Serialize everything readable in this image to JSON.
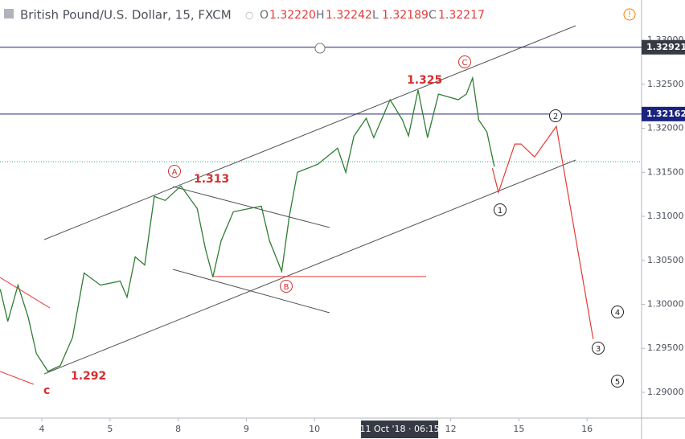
{
  "chart_data": {
    "type": "line",
    "title": "British Pound/U.S. Dollar, 15, FXCM",
    "ohlc": [
      {
        "key": "O",
        "value": "1.32220"
      },
      {
        "key": "H",
        "value": "1.32242"
      },
      {
        "key": "L",
        "value": "1.32189"
      },
      {
        "key": "C",
        "value": "1.32217"
      }
    ],
    "series": [
      {
        "color": "#2e7d32",
        "x": [
          -0.61,
          -0.5,
          -0.35,
          -0.2,
          -0.08,
          0.09,
          0.27,
          0.45,
          0.62,
          0.86,
          1.15,
          1.25,
          1.37,
          1.51,
          1.65,
          1.81,
          2.04,
          2.28,
          2.4,
          2.51,
          2.63,
          2.81,
          3.22,
          3.34,
          3.52,
          3.63,
          3.75,
          4.05,
          4.34,
          4.46,
          4.58,
          4.76,
          4.87,
          5.11,
          5.29,
          5.38,
          5.52,
          5.66,
          5.82,
          6.11,
          6.23,
          6.32,
          6.41,
          6.53,
          6.64
        ],
        "values": [
          1.30172,
          1.29806,
          1.30218,
          1.29852,
          1.2944,
          1.29238,
          1.29302,
          1.29623,
          1.30356,
          1.30218,
          1.30264,
          1.30081,
          1.30539,
          1.30447,
          1.31226,
          1.3118,
          1.31345,
          1.31088,
          1.3063,
          1.3031,
          1.30722,
          1.31051,
          1.31115,
          1.30722,
          1.30374,
          1.30997,
          1.315,
          1.31592,
          1.31775,
          1.315,
          1.31913,
          1.32114,
          1.31894,
          1.32325,
          1.32096,
          1.31913,
          1.32435,
          1.31894,
          1.32389,
          1.32325,
          1.32389,
          1.32572,
          1.32096,
          1.31959,
          1.31565
        ]
      },
      {
        "color": "#e53935",
        "x": [
          6.61,
          6.7,
          6.94,
          7.03,
          7.23,
          7.55,
          8.09
        ],
        "values": [
          1.31547,
          1.31272,
          1.31822,
          1.31822,
          1.31675,
          1.32023,
          1.29605
        ]
      }
    ],
    "xlim": [
      -0.614,
      8.8
    ],
    "xticks": [
      {
        "value": 0,
        "label": "4"
      },
      {
        "value": 1,
        "label": "5"
      },
      {
        "value": 2,
        "label": "8"
      },
      {
        "value": 3,
        "label": "9"
      },
      {
        "value": 4,
        "label": "10"
      },
      {
        "value": 6,
        "label": "12"
      },
      {
        "value": 7,
        "label": "15"
      },
      {
        "value": 8,
        "label": "16"
      }
    ],
    "crosshair": {
      "x": 5.25,
      "label": "11 Oct '18 · 06:15"
    },
    "ylim": [
      1.28707,
      1.33458
    ],
    "yticks": [
      {
        "value": 1.29,
        "label": "1.29000"
      },
      {
        "value": 1.295,
        "label": "1.29500"
      },
      {
        "value": 1.3,
        "label": "1.30000"
      },
      {
        "value": 1.305,
        "label": "1.30500"
      },
      {
        "value": 1.31,
        "label": "1.31000"
      },
      {
        "value": 1.315,
        "label": "1.31500"
      },
      {
        "value": 1.32,
        "label": "1.32000"
      },
      {
        "value": 1.325,
        "label": "1.32500"
      },
      {
        "value": 1.33,
        "label": "1.33000"
      }
    ],
    "price_lines": [
      {
        "value": 1.32921,
        "color": "#1a237e",
        "label_color": "#363a45"
      },
      {
        "value": 1.32162,
        "color": "#1a237e",
        "label_color": "#1a237e"
      }
    ],
    "support_level": 1.30316,
    "dotted_level": 1.3162,
    "annotations": [
      "1.313",
      "1.325",
      "1.292",
      "c"
    ],
    "waves": [
      "A",
      "B",
      "C",
      "1",
      "2",
      "3",
      "4",
      "5"
    ]
  }
}
